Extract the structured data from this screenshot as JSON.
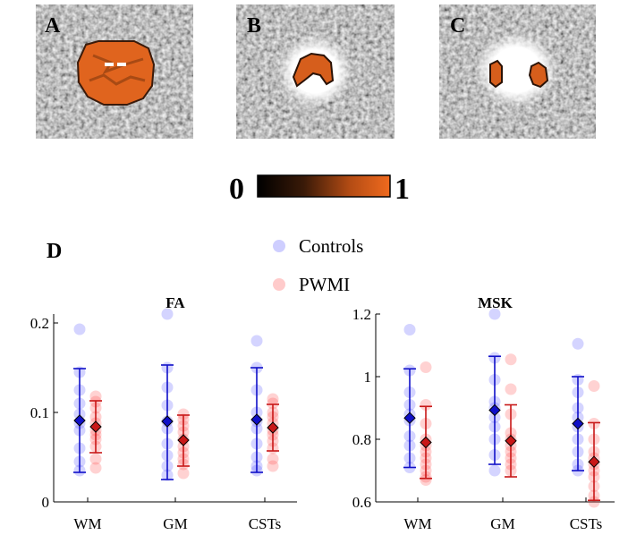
{
  "panels": {
    "a": "A",
    "b": "B",
    "c": "C",
    "d": "D"
  },
  "colorbar": {
    "min_label": "0",
    "max_label": "1",
    "dark_color": "#000000",
    "bright_color": "#f06a1e"
  },
  "legend": {
    "controls": {
      "label": "Controls",
      "color": "#3a3aff"
    },
    "pwmi": {
      "label": "PWMI",
      "color": "#ff3030"
    }
  },
  "colors": {
    "controls_line": "#1010c8",
    "pwmi_line": "#c81818",
    "brain_orange": "#e0641e"
  },
  "chart_data": [
    {
      "type": "scatter",
      "title": "FA",
      "categories": [
        "WM",
        "GM",
        "CSTs"
      ],
      "ylim": [
        0,
        0.21
      ],
      "yticks": [
        0,
        0.1,
        0.2
      ],
      "ytick_labels": [
        "0",
        "0.1",
        "0.2"
      ],
      "series": [
        {
          "name": "Controls",
          "mean": [
            0.091,
            0.09,
            0.092
          ],
          "err_low": [
            0.033,
            0.025,
            0.033
          ],
          "err_high": [
            0.149,
            0.153,
            0.15
          ],
          "points": [
            [
              0.193,
              0.145,
              0.125,
              0.11,
              0.098,
              0.088,
              0.08,
              0.06,
              0.045,
              0.035
            ],
            [
              0.21,
              0.15,
              0.128,
              0.108,
              0.09,
              0.082,
              0.065,
              0.052,
              0.04,
              0.03
            ],
            [
              0.18,
              0.15,
              0.125,
              0.1,
              0.09,
              0.082,
              0.065,
              0.05,
              0.04,
              0.035
            ]
          ]
        },
        {
          "name": "PWMI",
          "mean": [
            0.084,
            0.069,
            0.083
          ],
          "err_low": [
            0.055,
            0.04,
            0.057
          ],
          "err_high": [
            0.113,
            0.097,
            0.109
          ],
          "points": [
            [
              0.118,
              0.112,
              0.105,
              0.095,
              0.088,
              0.08,
              0.075,
              0.07,
              0.062,
              0.048,
              0.038
            ],
            [
              0.098,
              0.092,
              0.085,
              0.078,
              0.07,
              0.062,
              0.055,
              0.048,
              0.042,
              0.032
            ],
            [
              0.115,
              0.11,
              0.1,
              0.095,
              0.088,
              0.08,
              0.075,
              0.068,
              0.06,
              0.048,
              0.04
            ]
          ]
        }
      ]
    },
    {
      "type": "scatter",
      "title": "MSK",
      "categories": [
        "WM",
        "GM",
        "CSTs"
      ],
      "ylim": [
        0.6,
        1.2
      ],
      "yticks": [
        0.6,
        0.8,
        1.0,
        1.2
      ],
      "ytick_labels": [
        "0.6",
        "0.8",
        "1",
        "1.2"
      ],
      "series": [
        {
          "name": "Controls",
          "mean": [
            0.868,
            0.893,
            0.85
          ],
          "err_low": [
            0.71,
            0.72,
            0.7
          ],
          "err_high": [
            1.025,
            1.065,
            1.0
          ],
          "points": [
            [
              1.15,
              1.02,
              0.95,
              0.91,
              0.88,
              0.86,
              0.81,
              0.78,
              0.74,
              0.71
            ],
            [
              1.2,
              1.06,
              0.99,
              0.92,
              0.9,
              0.87,
              0.84,
              0.8,
              0.75,
              0.7
            ],
            [
              1.105,
              0.99,
              0.95,
              0.9,
              0.87,
              0.84,
              0.8,
              0.76,
              0.72,
              0.7
            ]
          ]
        },
        {
          "name": "PWMI",
          "mean": [
            0.79,
            0.795,
            0.728
          ],
          "err_low": [
            0.675,
            0.68,
            0.605
          ],
          "err_high": [
            0.905,
            0.91,
            0.853
          ],
          "points": [
            [
              1.03,
              0.91,
              0.85,
              0.8,
              0.78,
              0.76,
              0.74,
              0.72,
              0.7,
              0.68,
              0.67
            ],
            [
              1.055,
              0.96,
              0.88,
              0.82,
              0.8,
              0.78,
              0.76,
              0.74,
              0.72,
              0.7
            ],
            [
              0.97,
              0.85,
              0.8,
              0.76,
              0.74,
              0.72,
              0.7,
              0.68,
              0.65,
              0.62,
              0.6
            ]
          ]
        }
      ]
    }
  ]
}
